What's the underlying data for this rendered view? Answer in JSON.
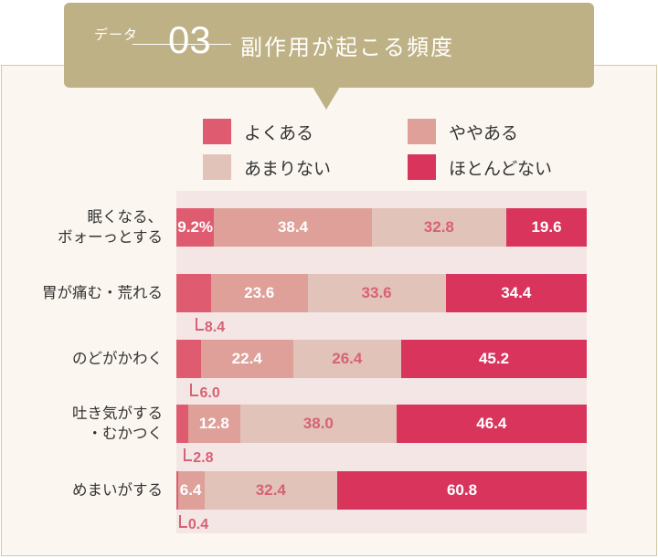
{
  "header": {
    "badge": "データ",
    "number": "03",
    "title": "副作用が起こる頻度"
  },
  "colors": {
    "often": "#df5c70",
    "sometimes": "#dea099",
    "rarely": "#e2c3b9",
    "never": "#d8345c",
    "header_bg": "#bfb186",
    "frame_bg": "#fbf6f0",
    "plot_bg": "#f3e6e4"
  },
  "legend": [
    {
      "label": "よくある",
      "color": "#df5c70"
    },
    {
      "label": "ややある",
      "color": "#dea099"
    },
    {
      "label": "あまりない",
      "color": "#e2c3b9"
    },
    {
      "label": "ほとんどない",
      "color": "#d8345c"
    }
  ],
  "chart_data": {
    "type": "bar",
    "orientation": "horizontal",
    "stacked": true,
    "unit": "%",
    "categories": [
      [
        "眠くなる、",
        "ボォーっとする"
      ],
      [
        "胃が痛む・荒れる"
      ],
      [
        "のどがかわく"
      ],
      [
        "吐き気がする",
        "・むかつく"
      ],
      [
        "めまいがする"
      ]
    ],
    "series": [
      {
        "name": "よくある",
        "values": [
          9.2,
          8.4,
          6.0,
          2.8,
          0.4
        ]
      },
      {
        "name": "ややある",
        "values": [
          38.4,
          23.6,
          22.4,
          12.8,
          6.4
        ]
      },
      {
        "name": "あまりない",
        "values": [
          32.8,
          33.6,
          26.4,
          38.0,
          32.4
        ]
      },
      {
        "name": "ほとんどない",
        "values": [
          19.6,
          34.4,
          45.2,
          46.4,
          60.8
        ]
      }
    ],
    "data_labels": [
      [
        "9.2%",
        "38.4",
        "32.8",
        "19.6"
      ],
      [
        "8.4",
        "23.6",
        "33.6",
        "34.4"
      ],
      [
        "6.0",
        "22.4",
        "26.4",
        "45.2"
      ],
      [
        "2.8",
        "12.8",
        "38.0",
        "46.4"
      ],
      [
        "0.4",
        "6.4",
        "32.4",
        "60.8"
      ]
    ],
    "xlim": [
      0,
      100
    ],
    "legend_position": "top"
  }
}
